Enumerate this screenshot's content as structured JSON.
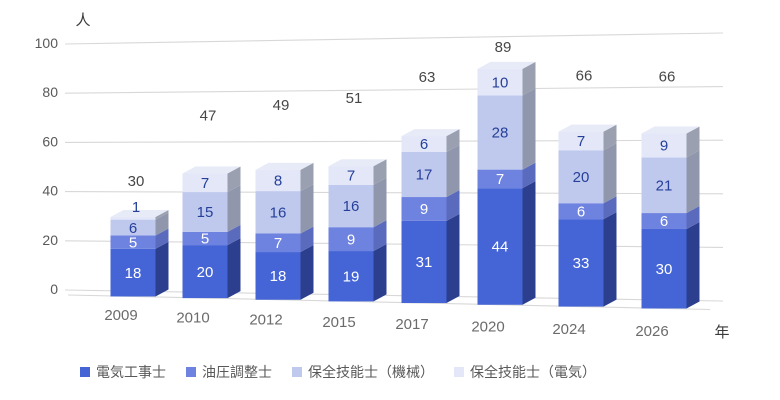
{
  "chart_data": {
    "type": "bar",
    "stacked": true,
    "style": "3d",
    "background": "#ffffff",
    "y_axis": {
      "unit": "人",
      "ticks": [
        0,
        20,
        40,
        60,
        80,
        100
      ],
      "range": [
        0,
        100
      ]
    },
    "x_axis": {
      "unit": "年",
      "categories": [
        "2009",
        "2010",
        "2012",
        "2015",
        "2017",
        "2020",
        "2024",
        "2026"
      ]
    },
    "series": [
      {
        "name": "電気工事士",
        "color": "#4565d6",
        "side_color": "#2c3f8f",
        "label_color": "#ffffff",
        "values": [
          18,
          20,
          18,
          19,
          31,
          44,
          33,
          30
        ]
      },
      {
        "name": "油圧調整士",
        "color": "#6e82e0",
        "side_color": "#5a6bbd",
        "label_color": "#ffffff",
        "values": [
          5,
          5,
          7,
          9,
          9,
          7,
          6,
          6
        ]
      },
      {
        "name": "保全技能士（機械）",
        "color": "#bfc9ee",
        "side_color": "#9097ad",
        "label_color": "#26409a",
        "values": [
          6,
          15,
          16,
          16,
          17,
          28,
          20,
          21
        ]
      },
      {
        "name": "保全技能士（電気）",
        "color": "#e3e7f8",
        "side_color": "#9aa0af",
        "label_color": "#26409a",
        "values": [
          1,
          7,
          8,
          7,
          6,
          10,
          7,
          9
        ]
      }
    ],
    "totals": [
      30,
      47,
      49,
      51,
      63,
      89,
      66,
      66
    ],
    "top_face_color": "#e7eaf7",
    "grid": true,
    "grid_color": "#d8d8d8",
    "legend_position": "bottom",
    "text_colors": {
      "totals": "#474747",
      "ticks": "#595959",
      "categories": "#6b6b6b",
      "axis_units": "#3a3a3a",
      "legend": "#595959"
    }
  }
}
